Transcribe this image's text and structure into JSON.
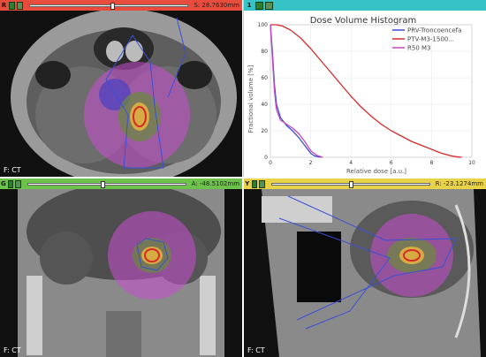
{
  "views": {
    "axial": {
      "tag": "R",
      "coord": "S: 28.7630mm",
      "label": "F: CT",
      "slider": 0.51,
      "color": "#e74c3c"
    },
    "chart_tag": "1",
    "coronal": {
      "tag": "G",
      "coord": "A: -48.5102mm",
      "label": "F: CT",
      "slider": 0.46,
      "color": "#6cc24a"
    },
    "sagittal": {
      "tag": "Y",
      "coord": "R: -23.1274mm",
      "label": "F: CT",
      "slider": 0.49,
      "color": "#e8d24a"
    }
  },
  "chart_data": {
    "type": "line",
    "title": "Dose Volume Histogram",
    "xlabel": "Relative dose [a.u.]",
    "ylabel": "Fractional volume [%]",
    "xlim": [
      0,
      10
    ],
    "ylim": [
      0,
      100
    ],
    "xticks": [
      "0",
      "2",
      "4",
      "6",
      "8",
      "10"
    ],
    "yticks": [
      "0",
      "20",
      "40",
      "60",
      "80",
      "100"
    ],
    "legend": "top-right",
    "series": [
      {
        "name": "PRV-Troncoencefa",
        "color": "#3a4fd6",
        "x": [
          0,
          0.1,
          0.2,
          0.3,
          0.5,
          0.8,
          1.1,
          1.4,
          1.7,
          2.0,
          2.2,
          2.5
        ],
        "y": [
          100,
          80,
          55,
          40,
          30,
          24,
          20,
          15,
          9,
          3,
          1,
          0
        ]
      },
      {
        "name": "PTV-M3-1500...",
        "color": "#d42a2a",
        "x": [
          0,
          0.3,
          0.6,
          1.0,
          1.5,
          2.0,
          2.5,
          3.0,
          3.5,
          4.0,
          4.5,
          5.0,
          5.5,
          6.0,
          6.5,
          7.0,
          7.5,
          8.0,
          8.5,
          9.0,
          9.3,
          9.5
        ],
        "y": [
          100,
          100,
          99,
          96,
          90,
          82,
          73,
          64,
          55,
          46,
          38,
          31,
          25,
          20,
          16,
          12,
          9,
          6,
          3,
          1,
          0.3,
          0
        ]
      },
      {
        "name": "R50 M3",
        "color": "#c447c4",
        "x": [
          0,
          0.1,
          0.2,
          0.3,
          0.5,
          0.8,
          1.1,
          1.4,
          1.7,
          2.0,
          2.3,
          2.6
        ],
        "y": [
          100,
          75,
          50,
          36,
          28,
          25,
          22,
          18,
          12,
          5,
          1.5,
          0
        ]
      }
    ]
  }
}
